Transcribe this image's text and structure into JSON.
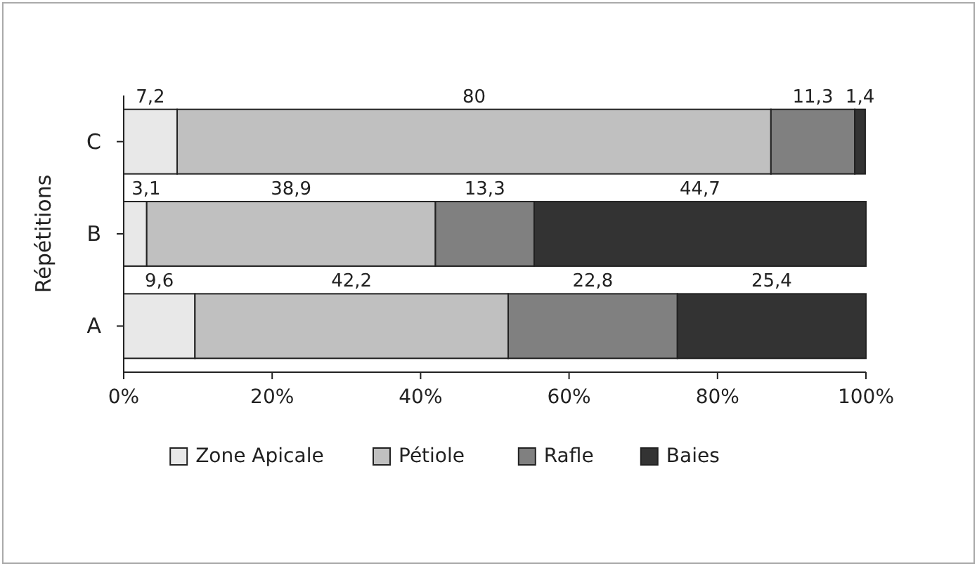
{
  "chart_data": {
    "type": "bar",
    "orientation": "horizontal",
    "stacked": true,
    "ylabel": "Répétitions",
    "categories": [
      "C",
      "B",
      "A"
    ],
    "xlim": [
      0,
      100
    ],
    "xticks": [
      {
        "value": 0,
        "label": "0%"
      },
      {
        "value": 20,
        "label": "20%"
      },
      {
        "value": 40,
        "label": "40%"
      },
      {
        "value": 60,
        "label": "60%"
      },
      {
        "value": 80,
        "label": "80%"
      },
      {
        "value": 100,
        "label": "100%"
      }
    ],
    "series": [
      {
        "name": "Zone Apicale",
        "color": "#e8e8e8",
        "values": [
          7.2,
          3.1,
          9.6
        ],
        "value_labels": [
          "7,2",
          "3,1",
          "9,6"
        ]
      },
      {
        "name": "Pétiole",
        "color": "#c0c0c0",
        "values": [
          80,
          38.9,
          42.2
        ],
        "value_labels": [
          "80",
          "38,9",
          "42,2"
        ]
      },
      {
        "name": "Rafle",
        "color": "#808080",
        "values": [
          11.3,
          13.3,
          22.8
        ],
        "value_labels": [
          "11,3",
          "13,3",
          "22,8"
        ]
      },
      {
        "name": "Baies",
        "color": "#333333",
        "values": [
          1.4,
          44.7,
          25.4
        ],
        "value_labels": [
          "1,4",
          "44,7",
          "25,4"
        ]
      }
    ],
    "legend": "bottom",
    "grid": false
  }
}
